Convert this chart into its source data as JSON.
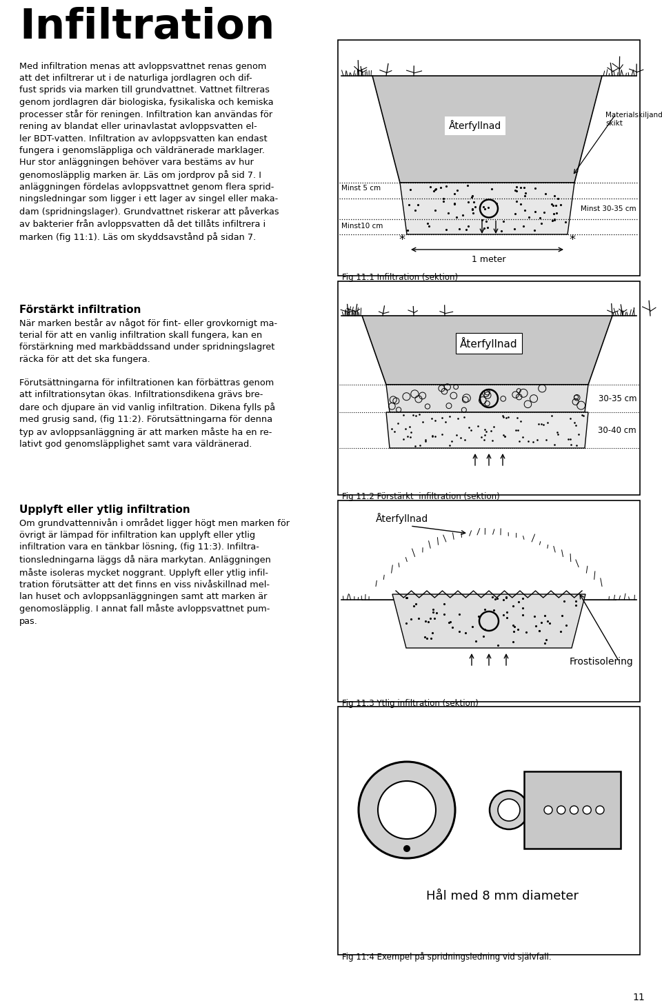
{
  "title": "Infiltration",
  "fig1_caption": "Fig 11:1 Infiltration (sektion)",
  "fig2_caption": "Fig 11:2 Förstärkt  infiltration (sektion)",
  "fig3_caption": "Fig 11:3 Ytlig infiltration (sektion)",
  "fig4_caption": "Fig 11:4 Exempel på spridningsledning vid självfall.",
  "fig4_label": "Hål med 8 mm diameter",
  "page_number": "11",
  "bg_color": "#ffffff",
  "text_color": "#000000",
  "gray_fill": "#c8c8c8",
  "dark_gray": "#a0a0a0",
  "gravel_color": "#e4e4e4",
  "sand_color": "#ececec",
  "para1": "Med infiltration menas att avloppsvattnet renas genom\natt det infiltrerar ut i de naturliga jordlagren och dif-\nfust sprids via marken till grundvattnet. Vattnet filtreras\ngenom jordlagren där biologiska, fysikaliska och kemiska\nprocesser står för reningen. Infiltration kan användas för\nrening av blandat eller urinavlastat avloppsvatten el-\nler BDT-vatten. Infiltration av avloppsvatten kan endast\nfungera i genomsläppliga och väldränerade marklager.\nHur stor anläggningen behöver vara bestäms av hur\ngenomosläpplig marken är. Läs om jordprov på sid 7. I\nanläggningen fördelas avloppsvattnet genom flera sprid-\nningsledningar som ligger i ett lager av singel eller maka-\ndam (spridningslager). Grundvattnet riskerar att påverkas\nav bakterier från avloppsvatten då det tillåts infiltrera i\nmarken (fig 11:1). Läs om skyddsavstånd på sidan 7.",
  "head2": "Förstärkt infiltration",
  "para2": "När marken består av något för fint- eller grovkornigt ma-\nterial för att en vanlig infiltration skall fungera, kan en\nförstärkning med markbäddssand under spridningslagret\nräcka för att det ska fungera.\n\nFörutsättningarna för infiltrationen kan förbättras genom\natt infiltrationsytan ökas. Infiltrationsdikena grävs bre-\ndare och djupare än vid vanlig infiltration. Dikena fylls på\nmed grusig sand, (fig 11:2). Förutsättningarna för denna\ntyp av avloppsanläggning är att marken måste ha en re-\nlativt god genomsläpplighet samt vara väldränerad.",
  "head3": "Upplyft eller ytlig infiltration",
  "para3": "Om grundvattennivån i området ligger högt men marken för\növrigt är lämpad för infiltration kan upplyft eller ytlig\ninfiltration vara en tänkbar lösning, (fig 11:3). Infiltra-\ntionsledningarna läggs då nära markytan. Anläggningen\nmåste isoleras mycket noggrant. Upplyft eller ytlig infil-\ntration förutsätter att det finns en viss nivåskillnad mel-\nlan huset och avloppsanläggningen samt att marken är\ngenomosläpplig. I annat fall måste avloppsvattnet pum-\npas."
}
